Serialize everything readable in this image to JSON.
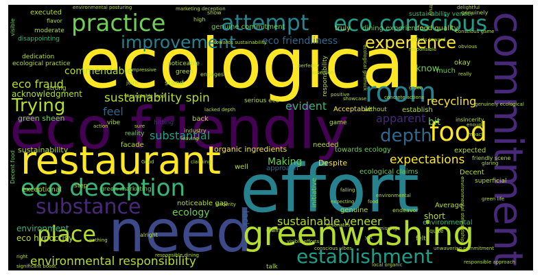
{
  "palette": {
    "background": "#000000",
    "page": "#ffffff",
    "yellow": "#fde725",
    "lime": "#b5de2b",
    "green": "#6ece58",
    "seagreen": "#35b779",
    "teal": "#1f9e89",
    "cyan": "#26828e",
    "blue": "#31688e",
    "indigo": "#3e4989",
    "purple": "#482878",
    "darkpurple": "#440154"
  },
  "words": {
    "ecological": "ecological",
    "eco_friendly": "eco friendly",
    "effort": "effort",
    "need": "need",
    "restaurant": "restaurant",
    "greenwashing": "greenwashing",
    "commitment": "commitment",
    "eco_deception": "eco deception",
    "room": "room",
    "attempt": "attempt",
    "eco_conscious": "eco conscious",
    "practice": "practice",
    "establishment": "establishment",
    "food": "food",
    "substance": "substance",
    "depth": "depth",
    "improvement": "improvement",
    "experience": "experience",
    "place": "place",
    "trying": "Trying",
    "eco_friendliness": "eco friendliness",
    "sustainability_spin": "sustainability spin",
    "environmental_responsibility": "environmental responsibility",
    "sustainable_veneer": "sustainable veneer",
    "eco_fraud": "eco fraud",
    "commendable": "commendable",
    "expectations": "expectations",
    "recycling": "recycling",
    "apparent": "apparent",
    "evident": "evident",
    "substantial": "substantial",
    "making": "Making",
    "feel": "feel",
    "bit": "bit",
    "know": "know",
    "ecology": "ecology",
    "environment": "environment",
    "eco_hypocrisy": "eco hypocrisy",
    "acknowledgment": "acknowledgment",
    "organic_ingredients": "organic ingredients",
    "sustainability": "sustainability",
    "green_sheen": "green sheen",
    "ecological_practice": "ecological practice",
    "dedication": "dedication",
    "moderate": "moderate",
    "executed": "executed",
    "genuine_commitment": "genuine commitment",
    "dining_experience": "dining experience",
    "food_quality": "food quality",
    "sustainability_veneer": "sustainability veneer",
    "environmental_posturing": "environmental posturing",
    "marketing_deception": "marketing deception",
    "noticeable_gap": "noticeable gap",
    "green_marketing": "green marketing",
    "exceptional": "exceptional",
    "towards_ecology": "towards ecology",
    "ecological_claims": "ecological claims",
    "despite": "Despite",
    "needed": "needed",
    "establish": "establish",
    "acceptable": "Acceptable",
    "lack": "lack",
    "short": "short",
    "average": "Average",
    "decent": "Decent",
    "expected": "expected",
    "okay": "okay",
    "much": "much",
    "noticeable": "noticeable",
    "stand": "stand",
    "facade": "facade",
    "back": "back",
    "reality": "reality",
    "serious_eco": "serious eco",
    "industry": "industry",
    "well": "well",
    "approach": "approach",
    "genuine": "genuine",
    "environmental": "environmental",
    "superficial": "superficial",
    "initiative": "initiative",
    "towards_sustainability": "towards sustainability",
    "truly": "truly",
    "disappointing": "disappointing",
    "flavor": "flavor",
    "high": "high",
    "show": "show",
    "delightful": "delightful",
    "genuinely": "genuinely",
    "conscious_game": "conscious game",
    "vibe": "vibe",
    "hitting": "hitting",
    "green": "green",
    "joint": "joint",
    "strong": "strong",
    "positive": "positive",
    "without": "without",
    "concrete_actions": "concrete actions",
    "game": "game",
    "claim": "claim",
    "conscious_vibes": "conscious vibes",
    "felt": "felt",
    "talk": "talk",
    "missing": "missing",
    "yet": "yet",
    "quite": "quite",
    "alright": "alright",
    "endeavor": "endeavor",
    "resonates": "resonates",
    "step": "step",
    "sincerity": "sincerity",
    "friendly_scene": "friendly scene",
    "impact": "impact",
    "obvious": "obvious",
    "really": "really",
    "responsible": "responsible",
    "engages": "engages",
    "assertion": "assertion",
    "good": "Good",
    "leaving": "leaving",
    "sure": "sure",
    "claiming": "claiming",
    "action": "action",
    "lacked_depth": "lacked depth",
    "showcase": "showcase",
    "falling": "falling",
    "expecting": "expecting",
    "food_small": "food",
    "green_life": "green life",
    "glaring": "glaring",
    "environmental_small": "environmental",
    "insincerity": "insincerity",
    "decent_food": "Decent food",
    "significant_boost": "significant boost",
    "impressive": "impressive",
    "perfectly": "perfectly",
    "enough": "enough",
    "acceptable_food": "Acceptable food",
    "responsibility": "responsibility",
    "efforts_toward": "efforts toward",
    "green_small": "green",
    "visible_efforts": "visible efforts",
    "local_organic": "local organic",
    "responsible_dining": "responsible dining",
    "unwavering_commitment": "unwavering commitment",
    "responsible_approach": "responsible approach",
    "right": "right",
    "genuinely_ecological": "genuinely ecological",
    "ecological_gimmick": "ecological gimmick",
    "environmental_stewardship": "environmental stewardship",
    "visible": "visible",
    "nothing": "nothing",
    "truly_small": "truly"
  }
}
